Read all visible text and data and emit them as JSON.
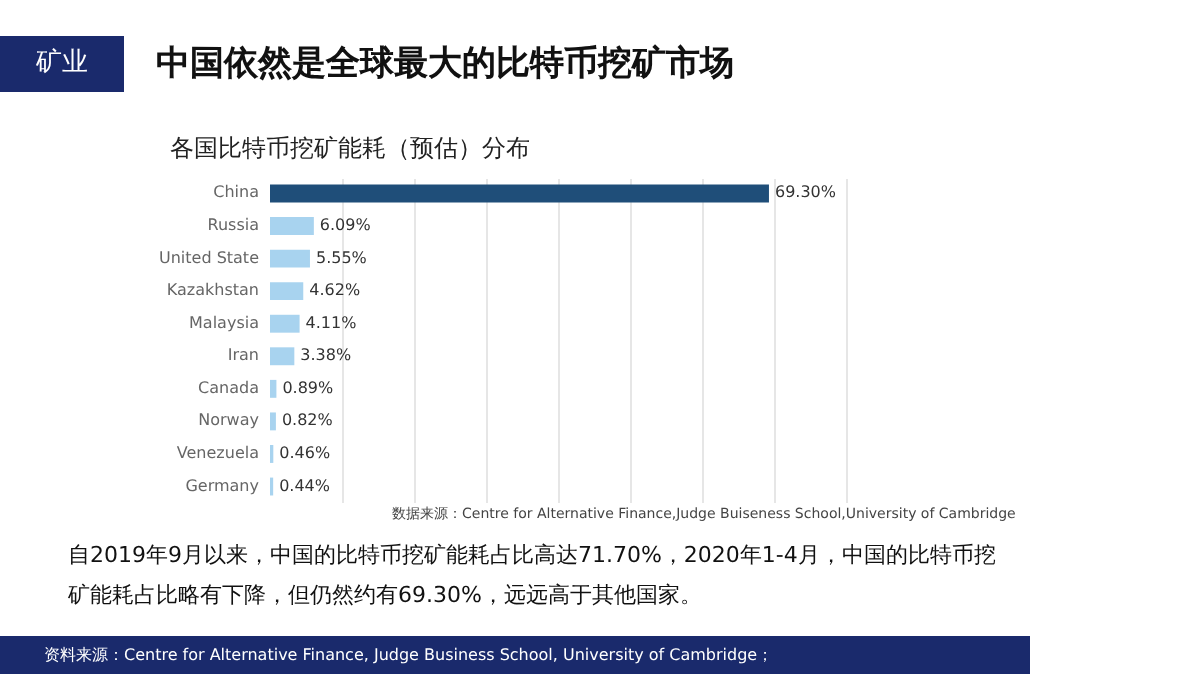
{
  "chart_data": {
    "type": "bar",
    "orientation": "horizontal",
    "title": "中国依然是全球最大的比特币挖矿市场",
    "subtitle": "各国比特币挖矿能耗（预估）分布",
    "categories": [
      "China",
      "Russia",
      "United State",
      "Kazakhstan",
      "Malaysia",
      "Iran",
      "Canada",
      "Norway",
      "Venezuela",
      "Germany"
    ],
    "values": [
      69.3,
      6.09,
      5.55,
      4.62,
      4.11,
      3.38,
      0.89,
      0.82,
      0.46,
      0.44
    ],
    "value_labels": [
      "69.30%",
      "6.09%",
      "5.55%",
      "4.62%",
      "4.11%",
      "3.38%",
      "0.89%",
      "0.82%",
      "0.46%",
      "0.44%"
    ],
    "colors": [
      "#1f4e79",
      "#a8d3ef",
      "#a8d3ef",
      "#a8d3ef",
      "#a8d3ef",
      "#a8d3ef",
      "#a8d3ef",
      "#a8d3ef",
      "#a8d3ef",
      "#a8d3ef"
    ],
    "xlim": [
      0,
      80
    ],
    "xticks": [
      {
        "value": 10,
        "label": null
      },
      {
        "value": 20,
        "label": null
      },
      {
        "value": 30,
        "label": null
      },
      {
        "value": 40,
        "label": null
      },
      {
        "value": 50,
        "label": null
      },
      {
        "value": 60,
        "label": null
      },
      {
        "value": 70,
        "label": null
      },
      {
        "value": 80,
        "label": null
      }
    ],
    "grid": "x",
    "tick_labels": "y",
    "annotations": [
      "矿业",
      "数据来源：Centre for Alternative Finance,Judge Buiseness School,University of Cambridge",
      "自2019年9月以来，中国的比特币挖矿能耗占比高达71.70%，2020年1-4月，中国的比特币挖矿能耗占比略有下降，但仍然约有69.30%，远远高于其他国家。",
      "资料来源：Centre for Alternative Finance, Judge Business School, University of Cambridge；"
    ]
  }
}
